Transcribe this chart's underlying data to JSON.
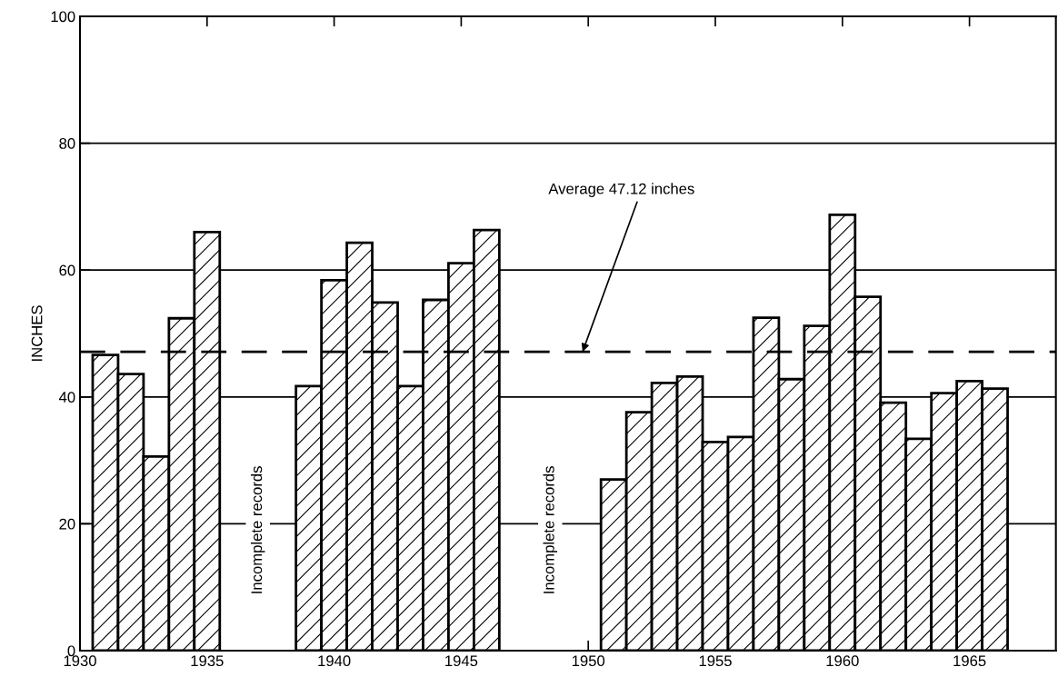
{
  "chart_data": {
    "type": "bar",
    "ylabel": "INCHES",
    "x": [
      1931,
      1932,
      1933,
      1934,
      1935,
      1936,
      1937,
      1938,
      1939,
      1940,
      1941,
      1942,
      1943,
      1944,
      1945,
      1946,
      1947,
      1948,
      1949,
      1950,
      1951,
      1952,
      1953,
      1954,
      1955,
      1956,
      1957,
      1958,
      1959,
      1960,
      1961,
      1962,
      1963,
      1964,
      1965,
      1966
    ],
    "values": [
      46.6,
      43.6,
      30.6,
      52.4,
      66.0,
      null,
      null,
      null,
      41.7,
      58.4,
      64.3,
      54.9,
      41.7,
      55.3,
      61.1,
      66.3,
      null,
      null,
      null,
      null,
      27.0,
      37.6,
      42.2,
      43.2,
      32.9,
      33.7,
      52.5,
      42.8,
      51.2,
      68.7,
      55.8,
      39.1,
      33.4,
      40.6,
      42.5,
      41.3
    ],
    "color": "#000000",
    "xlim": [
      1930,
      1968.4
    ],
    "xticks": [
      1930,
      1935,
      1940,
      1945,
      1950,
      1955,
      1960,
      1965
    ],
    "ylim": [
      0,
      100
    ],
    "yticks": [
      0,
      20,
      40,
      60,
      80,
      100
    ],
    "grid": "y",
    "ref_lines": [
      {
        "axis": "y",
        "value": 47.12,
        "label": "Average 47.12 inches",
        "line_style": "dashed",
        "color": "#000000"
      }
    ],
    "annotations": [
      "Incomplete records",
      "Incomplete records"
    ]
  }
}
